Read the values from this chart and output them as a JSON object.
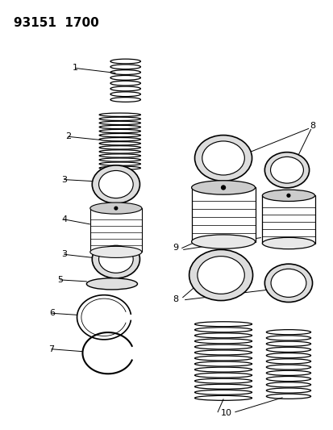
{
  "title": "93151  1700",
  "bg_color": "#ffffff",
  "line_color": "#000000",
  "title_fontsize": 11,
  "label_fontsize": 8,
  "fig_width": 4.14,
  "fig_height": 5.33,
  "dpi": 100
}
